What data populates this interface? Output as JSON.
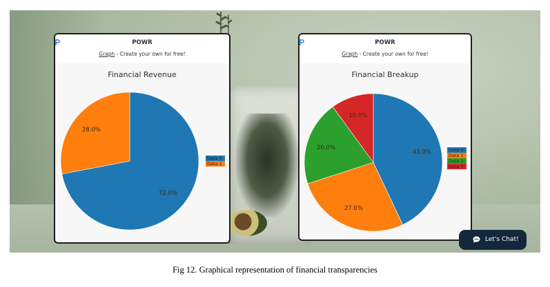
{
  "brand": "POWR",
  "tagline_link": "Graph",
  "tagline_rest": " - Create your own for free!",
  "chat_label": "Let's Chat!",
  "caption": "Fig 12. Graphical representation of financial transparencies",
  "colors": {
    "blue": "#1f77b4",
    "orange": "#ff7f0e",
    "green": "#2ca02c",
    "red": "#d62728",
    "chat_bg": "#13273d"
  },
  "charts": [
    {
      "title": "Financial Revenue",
      "slices": [
        {
          "name": "Data 0",
          "value": 72.0,
          "label": "72.0%",
          "color": "#1f77b4"
        },
        {
          "name": "Data 1",
          "value": 28.0,
          "label": "28.0%",
          "color": "#ff7f0e"
        }
      ]
    },
    {
      "title": "Financial Breakup",
      "slices": [
        {
          "name": "Data 0",
          "value": 43.0,
          "label": "43.0%",
          "color": "#1f77b4"
        },
        {
          "name": "Data 1",
          "value": 27.0,
          "label": "27.0%",
          "color": "#ff7f0e"
        },
        {
          "name": "Data 2",
          "value": 20.0,
          "label": "20.0%",
          "color": "#2ca02c"
        },
        {
          "name": "Data 3",
          "value": 10.0,
          "label": "10.0%",
          "color": "#d62728"
        }
      ]
    }
  ],
  "chart_data": [
    {
      "type": "pie",
      "title": "Financial Revenue",
      "categories": [
        "Data 0",
        "Data 1"
      ],
      "values": [
        72.0,
        28.0
      ],
      "labels": [
        "72.0%",
        "28.0%"
      ],
      "legend": "right"
    },
    {
      "type": "pie",
      "title": "Financial Breakup",
      "categories": [
        "Data 0",
        "Data 1",
        "Data 2",
        "Data 3"
      ],
      "values": [
        43.0,
        27.0,
        20.0,
        10.0
      ],
      "labels": [
        "43.0%",
        "27.0%",
        "20.0%",
        "10.0%"
      ],
      "legend": "right"
    }
  ]
}
